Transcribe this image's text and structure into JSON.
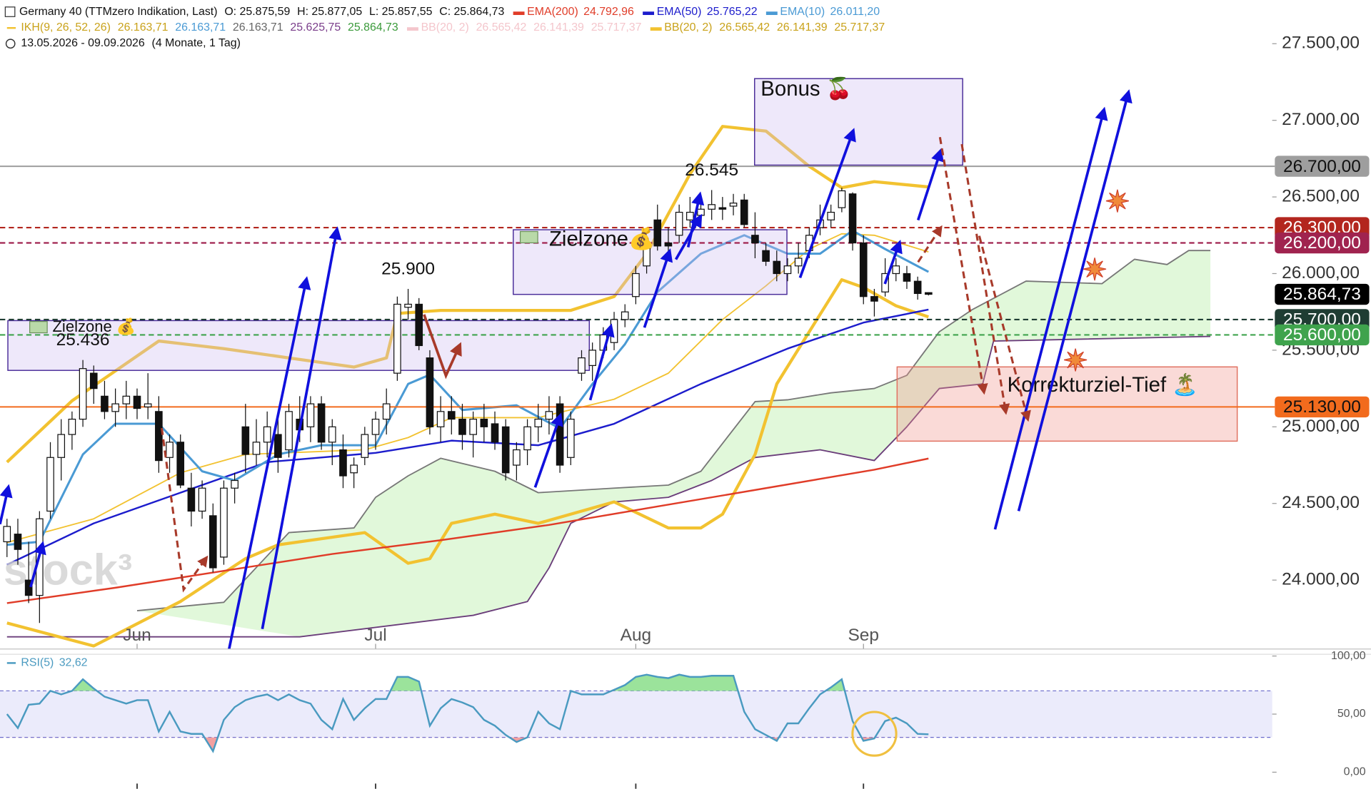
{
  "chart_data": {
    "type": "candlestick",
    "title": "Germany 40 (TTMzero Indikation, Last)",
    "quote": [
      "O: 25.875,59",
      "H: 25.877,05",
      "L: 25.857,55",
      "C: 25.864,73"
    ],
    "date_range": "13.05.2026 - 09.09.2026",
    "period": "(4 Monate, 1 Tag)",
    "watermark": "stock³",
    "up_color": "#ffffff",
    "down_color": "#111111",
    "ohlc": [
      [
        24250,
        24400,
        24150,
        24350
      ],
      [
        24300,
        24400,
        24100,
        24200
      ],
      [
        24000,
        24250,
        23850,
        23900
      ],
      [
        23900,
        24450,
        23720,
        24400
      ],
      [
        24450,
        24900,
        24400,
        24800
      ],
      [
        24800,
        25050,
        24650,
        24950
      ],
      [
        24950,
        25100,
        24850,
        25050
      ],
      [
        25050,
        25436,
        25000,
        25380
      ],
      [
        25350,
        25400,
        25150,
        25250
      ],
      [
        25200,
        25300,
        25050,
        25100
      ],
      [
        25100,
        25250,
        25000,
        25150
      ],
      [
        25150,
        25300,
        25050,
        25200
      ],
      [
        25200,
        25250,
        25050,
        25120
      ],
      [
        25130,
        25350,
        25050,
        25150
      ],
      [
        25100,
        25200,
        24700,
        24780
      ],
      [
        24800,
        24950,
        24700,
        24900
      ],
      [
        24900,
        24950,
        24600,
        24620
      ],
      [
        24600,
        24700,
        24350,
        24450
      ],
      [
        24450,
        24650,
        24400,
        24600
      ],
      [
        24420,
        24500,
        24050,
        24080
      ],
      [
        24150,
        24650,
        24100,
        24600
      ],
      [
        24600,
        24700,
        24500,
        24650
      ],
      [
        25000,
        25150,
        24700,
        24820
      ],
      [
        24820,
        25050,
        24750,
        24900
      ],
      [
        24900,
        25100,
        24800,
        25000
      ],
      [
        24950,
        25050,
        24700,
        24800
      ],
      [
        24850,
        25150,
        24800,
        25100
      ],
      [
        25050,
        25200,
        24900,
        24980
      ],
      [
        25000,
        25200,
        24900,
        25150
      ],
      [
        25150,
        25200,
        24850,
        24900
      ],
      [
        24900,
        25050,
        24750,
        25000
      ],
      [
        24850,
        24950,
        24600,
        24680
      ],
      [
        24700,
        24800,
        24600,
        24750
      ],
      [
        24800,
        25000,
        24750,
        24950
      ],
      [
        24950,
        25100,
        24850,
        25050
      ],
      [
        25050,
        25250,
        24950,
        25150
      ],
      [
        25350,
        25850,
        25300,
        25800
      ],
      [
        25780,
        25900,
        25700,
        25800
      ],
      [
        25800,
        25840,
        25500,
        25530
      ],
      [
        25450,
        25500,
        24950,
        25000
      ],
      [
        25000,
        25200,
        24900,
        25100
      ],
      [
        25100,
        25200,
        24950,
        25050
      ],
      [
        25050,
        25150,
        24850,
        24950
      ],
      [
        24950,
        25100,
        24800,
        25050
      ],
      [
        25050,
        25150,
        24900,
        25000
      ],
      [
        25020,
        25100,
        24850,
        24900
      ],
      [
        25000,
        25050,
        24650,
        24700
      ],
      [
        24750,
        24900,
        24650,
        24850
      ],
      [
        24850,
        25050,
        24750,
        25000
      ],
      [
        25000,
        25150,
        24900,
        25050
      ],
      [
        25050,
        25200,
        24950,
        25100
      ],
      [
        25150,
        25200,
        24700,
        24750
      ],
      [
        24800,
        25100,
        24750,
        25050
      ],
      [
        25350,
        25500,
        25300,
        25450
      ],
      [
        25400,
        25550,
        25300,
        25500
      ],
      [
        25500,
        25650,
        25450,
        25600
      ],
      [
        25550,
        25750,
        25500,
        25700
      ],
      [
        25700,
        25800,
        25650,
        25750
      ],
      [
        25850,
        26050,
        25800,
        26000
      ],
      [
        26050,
        26250,
        26000,
        26200
      ],
      [
        26350,
        26450,
        26150,
        26180
      ],
      [
        26200,
        26300,
        26100,
        26180
      ],
      [
        26250,
        26450,
        26200,
        26400
      ],
      [
        26350,
        26500,
        26300,
        26400
      ],
      [
        26380,
        26500,
        26300,
        26420
      ],
      [
        26420,
        26545,
        26350,
        26450
      ],
      [
        26430,
        26500,
        26350,
        26420
      ],
      [
        26440,
        26520,
        26380,
        26460
      ],
      [
        26480,
        26520,
        26300,
        26320
      ],
      [
        26250,
        26400,
        26100,
        26200
      ],
      [
        26150,
        26200,
        26050,
        26080
      ],
      [
        26080,
        26150,
        25950,
        26000
      ],
      [
        26000,
        26100,
        25950,
        26050
      ],
      [
        26050,
        26200,
        26000,
        26100
      ],
      [
        26150,
        26300,
        26100,
        26250
      ],
      [
        26300,
        26450,
        26250,
        26350
      ],
      [
        26350,
        26450,
        26300,
        26400
      ],
      [
        26430,
        26560,
        26400,
        26540
      ],
      [
        26520,
        26530,
        26150,
        26200
      ],
      [
        26200,
        26250,
        25800,
        25850
      ],
      [
        25850,
        25900,
        25720,
        25820
      ],
      [
        25880,
        26100,
        25850,
        26000
      ],
      [
        26000,
        26100,
        25950,
        26050
      ],
      [
        26000,
        26050,
        25900,
        25950
      ],
      [
        25950,
        25980,
        25830,
        25870
      ],
      [
        25875.59,
        25877.05,
        25857.55,
        25864.73
      ]
    ],
    "xlim": [
      -0.645,
      116.7
    ],
    "xticks": [
      {
        "value": 12,
        "label": "Jun"
      },
      {
        "value": 34,
        "label": "Jul"
      },
      {
        "value": 58,
        "label": "Aug"
      },
      {
        "value": 79,
        "label": "Sep"
      }
    ],
    "ylim": [
      23550,
      27785
    ],
    "yticks": [
      {
        "value": 24000,
        "label": "24.000,00"
      },
      {
        "value": 24500,
        "label": "24.500,00"
      },
      {
        "value": 25000,
        "label": "25.000,00"
      },
      {
        "value": 25500,
        "label": "25.500,00"
      },
      {
        "value": 26000,
        "label": "26.000,00"
      },
      {
        "value": 26500,
        "label": "26.500,00"
      },
      {
        "value": 27000,
        "label": "27.000,00"
      },
      {
        "value": 27500,
        "label": "27.500,00"
      }
    ],
    "series": [
      {
        "name": "EMA(200)",
        "legend_value": "24.792,96",
        "color": "#e03c28",
        "width": 2,
        "x": [
          0,
          10,
          20,
          30,
          40,
          50,
          60,
          70,
          80,
          85
        ],
        "values": [
          23850,
          23950,
          24060,
          24170,
          24260,
          24360,
          24480,
          24600,
          24720,
          24792.96
        ]
      },
      {
        "name": "EMA(50)",
        "legend_value": "25.765,22",
        "color": "#1c1ccc",
        "width": 2,
        "x": [
          0,
          8,
          16,
          24,
          34,
          41,
          49,
          56,
          64,
          72,
          79,
          85
        ],
        "values": [
          24100,
          24370,
          24570,
          24770,
          24830,
          24910,
          24880,
          25020,
          25280,
          25510,
          25680,
          25765.22
        ]
      },
      {
        "name": "EMA(10)",
        "legend_value": "26.011,20",
        "color": "#4a9ad4",
        "width": 2.5,
        "x": [
          0,
          3,
          7,
          10,
          14,
          18,
          21,
          25,
          29,
          34,
          37,
          39,
          42,
          47,
          51,
          54,
          57,
          60,
          64,
          68,
          72,
          75,
          78,
          81,
          85
        ],
        "values": [
          24230,
          24250,
          24820,
          25020,
          25020,
          24710,
          24650,
          24820,
          24880,
          24880,
          25280,
          25340,
          25110,
          25140,
          24990,
          25280,
          25540,
          25880,
          26130,
          26250,
          26130,
          26130,
          26280,
          26160,
          26011.2
        ]
      }
    ],
    "bollinger": {
      "name": "BB(20, 2)",
      "legend_values": [
        "26.565,42",
        "26.141,39",
        "25.717,37"
      ],
      "color": "#f2c230",
      "upper": {
        "x": [
          0,
          6,
          14,
          20,
          26,
          32,
          35,
          36,
          40,
          52,
          56,
          59,
          63,
          66,
          70,
          74,
          77,
          80,
          85
        ],
        "values": [
          24770,
          25170,
          25560,
          25510,
          25450,
          25390,
          25450,
          25740,
          25760,
          25760,
          25850,
          26130,
          26650,
          26960,
          26930,
          26700,
          26560,
          26600,
          26565.42
        ]
      },
      "middle": {
        "x": [
          0,
          8,
          16,
          22,
          33,
          37,
          41,
          49,
          56,
          61,
          66,
          70,
          74,
          77,
          80,
          85
        ],
        "values": [
          24245,
          24400,
          24700,
          24820,
          24850,
          24930,
          25060,
          25060,
          25180,
          25350,
          25700,
          25920,
          26160,
          26260,
          26250,
          26141.39
        ]
      },
      "lower": {
        "x": [
          0,
          8,
          16,
          22,
          25,
          33,
          37,
          39,
          41,
          45,
          49,
          56,
          61,
          64,
          66,
          69,
          71,
          74,
          77,
          79,
          82,
          85
        ],
        "values": [
          23720,
          23570,
          23860,
          24140,
          24230,
          24310,
          24110,
          24140,
          24370,
          24430,
          24370,
          24510,
          24340,
          24340,
          24430,
          24820,
          25280,
          25620,
          25960,
          25910,
          25790,
          25717.37
        ]
      }
    },
    "bollinger_hidden": {
      "name": "BB(20, 2)",
      "legend_values": [
        "26.565,42",
        "26.141,39",
        "25.717,37"
      ],
      "color": "#f4c6cc"
    },
    "ichimoku": {
      "name": "IKH(9, 26, 52, 26)",
      "color": "#f2c230",
      "legend_values": [
        "26.163,71",
        "26.163,71",
        "26.163,71",
        "25.625,75",
        "25.864,73"
      ],
      "legend_colors": [
        "#c9a21a",
        "#4a9ad4",
        "#666666",
        "#7a3d8a",
        "#3a9a3a"
      ],
      "cloud_color": "#dcf7d4",
      "span_a": {
        "color": "#777777",
        "x": [
          12,
          20,
          26,
          32,
          34,
          37,
          40,
          45,
          49,
          56,
          61,
          64,
          69,
          72,
          76,
          80,
          83,
          86,
          89,
          94,
          101,
          104,
          107,
          109,
          111
        ],
        "values": [
          23800,
          23855,
          24310,
          24340,
          24540,
          24680,
          24795,
          24710,
          24570,
          24600,
          24620,
          24710,
          25165,
          25176,
          25222,
          25250,
          25336,
          25621,
          25763,
          25951,
          25934,
          26093,
          26059,
          26150,
          26150
        ]
      },
      "span_b": {
        "color": "#6a3d7a",
        "x": [
          0,
          27,
          43,
          48,
          50,
          52,
          56,
          61,
          65,
          69,
          75,
          80,
          83,
          86,
          90,
          91,
          111
        ],
        "values": [
          23630,
          23630,
          23770,
          23860,
          24080,
          24370,
          24510,
          24540,
          24650,
          24800,
          24850,
          24780,
          25000,
          25250,
          25280,
          25560,
          25590
        ]
      }
    },
    "levels": [
      {
        "value": 26700,
        "label": "26.700,00",
        "color": "#9e9e9e",
        "text_color": "#111111",
        "line": "solid"
      },
      {
        "value": 26300,
        "label": "26.300,00",
        "color": "#b3261e",
        "text_color": "#ffffff",
        "line": "dashed"
      },
      {
        "value": 26200,
        "label": "26.200,00",
        "color": "#a0234f",
        "text_color": "#ffffff",
        "line": "dashed"
      },
      {
        "value": 25700,
        "label": "25.700,00",
        "color": "#1f3d33",
        "text_color": "#ffffff",
        "line": "dashed"
      },
      {
        "value": 25864.73,
        "label": "25.864,73",
        "color": "#000000",
        "text_color": "#ffffff",
        "line": "none"
      },
      {
        "value": 25600,
        "label": "25.600,00",
        "color": "#3fa34d",
        "text_color": "#ffffff",
        "line": "dashed"
      },
      {
        "value": 25130,
        "label": "25.130,00",
        "color": "#f26b1d",
        "text_color": "#111111",
        "line": "solid"
      }
    ],
    "annotations": [
      {
        "x": 7,
        "value": 25436,
        "label": "25.436"
      },
      {
        "x": 37,
        "value": 25900,
        "label": "25.900"
      },
      {
        "x": 65,
        "value": 26545,
        "label": "26.545"
      }
    ],
    "zones": [
      "Zielzone 💰",
      "Zielzone💰",
      "Bonus 🍒",
      "Korrekturziel-Tief 🏝️"
    ],
    "rsi": {
      "name": "RSI(5)",
      "value_label": "32,62",
      "color": "#4a9ac0",
      "ylim": [
        -14.3,
        104.5
      ],
      "yticks": [
        {
          "value": 0,
          "label": "0,00"
        },
        {
          "value": 50,
          "label": "50,00"
        },
        {
          "value": 100,
          "label": "100,00"
        }
      ],
      "band": [
        30,
        70
      ],
      "values": [
        50,
        38,
        58,
        59,
        70,
        67,
        70,
        80,
        72,
        65,
        62,
        59,
        62,
        62,
        35,
        52,
        35,
        33,
        33,
        18,
        45,
        56,
        62,
        65,
        67,
        62,
        67,
        62,
        59,
        45,
        37,
        63,
        45,
        55,
        63,
        63,
        82,
        82,
        78,
        40,
        55,
        63,
        60,
        56,
        45,
        40,
        32,
        26,
        30,
        52,
        42,
        37,
        70,
        67,
        67,
        67,
        71,
        75,
        82,
        84,
        82,
        81,
        84,
        82,
        82,
        83,
        83,
        83,
        52,
        37,
        32,
        27,
        42,
        42,
        55,
        67,
        73,
        80,
        44,
        27,
        29,
        44,
        47,
        42,
        33,
        32.62
      ]
    }
  }
}
